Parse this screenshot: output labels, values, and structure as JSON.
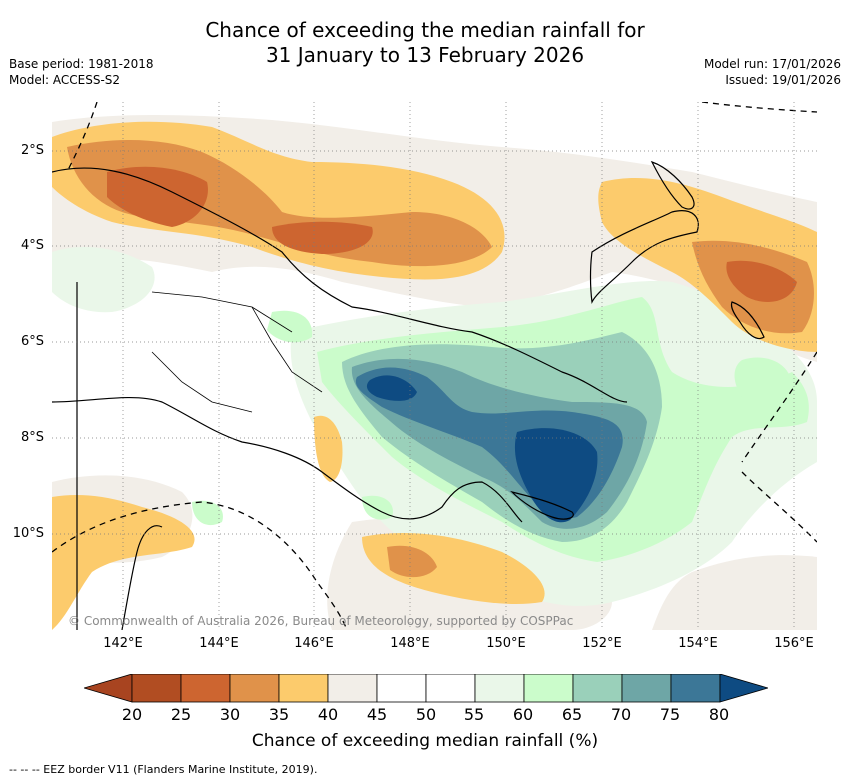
{
  "title": {
    "line1": "Chance of exceeding the median rainfall for",
    "line2": "31 January to 13 February 2026"
  },
  "meta_left": {
    "base_period": "Base period: 1981-2018",
    "model": "Model: ACCESS-S2"
  },
  "meta_right": {
    "model_run": "Model run: 17/01/2026",
    "issued": "Issued: 19/01/2026"
  },
  "map": {
    "latitude_labels": [
      "2°S",
      "4°S",
      "6°S",
      "8°S",
      "10°S"
    ],
    "longitude_labels": [
      "142°E",
      "144°E",
      "146°E",
      "148°E",
      "150°E",
      "152°E",
      "154°E",
      "156°E"
    ],
    "copyright": "© Commonwealth of Australia 2026, Bureau of Meteorology, supported by COSPPac"
  },
  "colorbar": {
    "ticks": [
      "20",
      "25",
      "30",
      "35",
      "40",
      "45",
      "50",
      "55",
      "60",
      "65",
      "70",
      "75",
      "80"
    ],
    "colors": [
      "#a84420",
      "#b14d22",
      "#cd6530",
      "#e0924a",
      "#fccb6c",
      "#f2eee8",
      "#ffffff",
      "#ffffff",
      "#eaf7e9",
      "#cbfccb",
      "#9ad0ba",
      "#6ea6a6",
      "#3c7797",
      "#0e4b82"
    ],
    "label": "Chance of exceeding median rainfall (%)"
  },
  "footer": {
    "eez": "-- -- -- EEZ border V11 (Flanders Marine Institute, 2019)."
  }
}
